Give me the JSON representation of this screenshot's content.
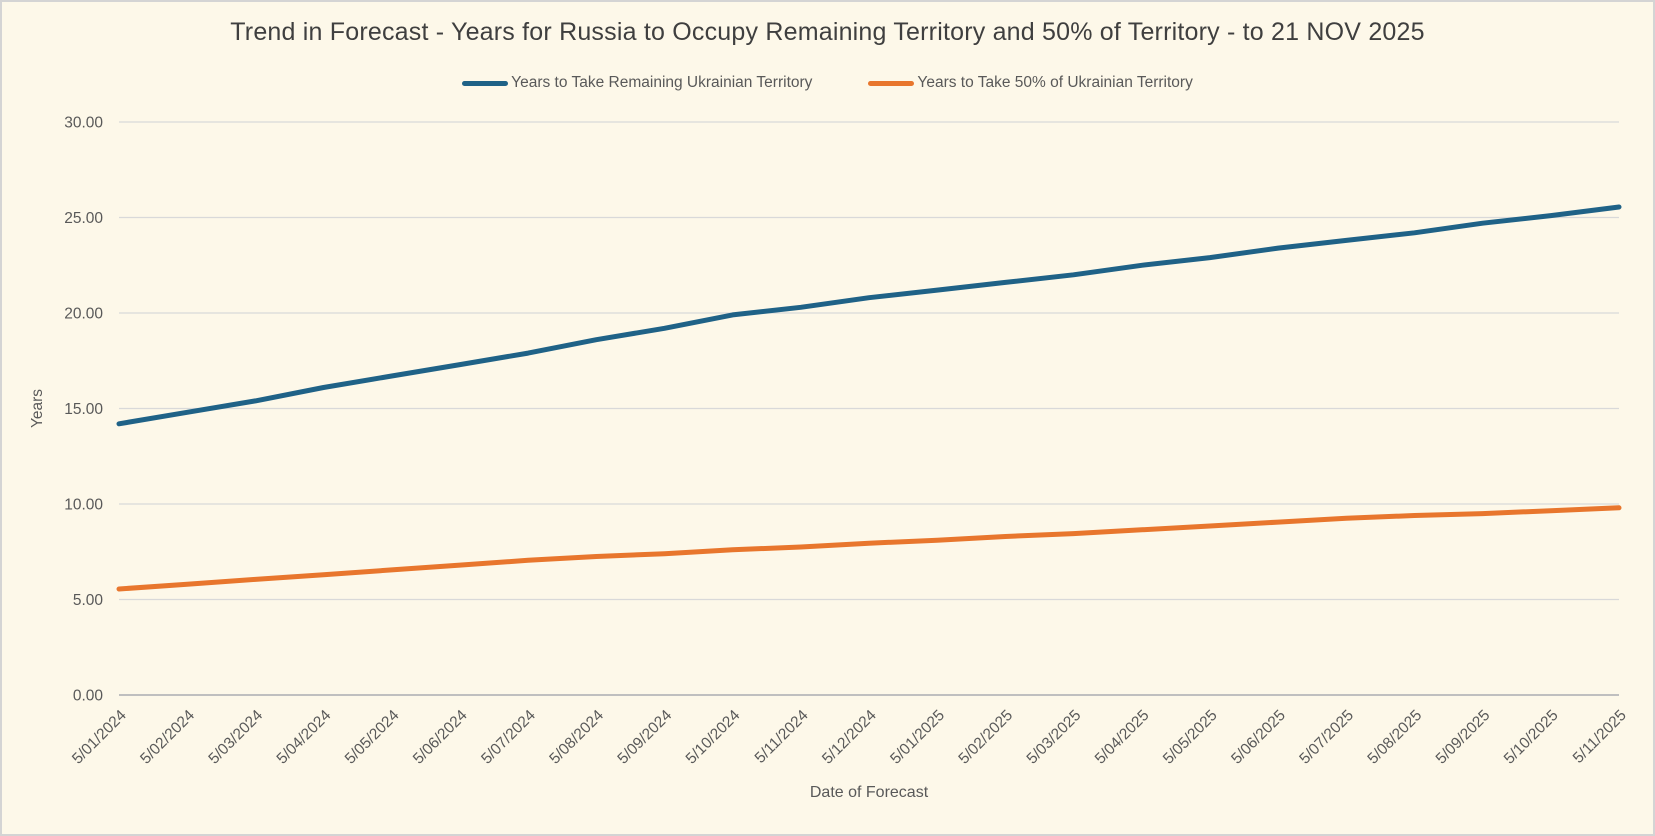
{
  "page": {
    "background": "#FDF8E9",
    "frame_border_color": "#D4D4D4"
  },
  "chart_data": {
    "type": "line",
    "title": "Trend in Forecast - Years for Russia to Occupy Remaining Territory and 50% of Territory - to 21 NOV 2025",
    "xlabel": "Date of Forecast",
    "ylabel": "Years",
    "ylim": [
      0,
      30
    ],
    "y_tick_step": 5,
    "y_tick_labels": [
      "0.00",
      "5.00",
      "10.00",
      "15.00",
      "20.00",
      "25.00",
      "30.00"
    ],
    "grid": true,
    "legend_position": "top-center",
    "title_color": "#3F3F3F",
    "axis_text_color": "#595959",
    "gridline_color": "#D9D9D9",
    "axis_line_color": "#BFBFBF",
    "categories": [
      "5/01/2024",
      "5/02/2024",
      "5/03/2024",
      "5/04/2024",
      "5/05/2024",
      "5/06/2024",
      "5/07/2024",
      "5/08/2024",
      "5/09/2024",
      "5/10/2024",
      "5/11/2024",
      "5/12/2024",
      "5/01/2025",
      "5/02/2025",
      "5/03/2025",
      "5/04/2025",
      "5/05/2025",
      "5/06/2025",
      "5/07/2025",
      "5/08/2025",
      "5/09/2025",
      "5/10/2025",
      "5/11/2025"
    ],
    "series": [
      {
        "name": "Years to Take Remaining Ukrainian Territory",
        "color": "#1F6287",
        "values": [
          14.2,
          14.8,
          15.4,
          16.1,
          16.7,
          17.3,
          17.9,
          18.6,
          19.2,
          19.9,
          20.3,
          20.8,
          21.2,
          21.6,
          22.0,
          22.5,
          22.9,
          23.4,
          23.8,
          24.2,
          24.7,
          25.1,
          25.55
        ]
      },
      {
        "name": "Years to Take  50% of Ukrainian Territory",
        "color": "#E8762D",
        "values": [
          5.55,
          5.8,
          6.05,
          6.3,
          6.55,
          6.8,
          7.05,
          7.25,
          7.4,
          7.6,
          7.75,
          7.95,
          8.1,
          8.3,
          8.45,
          8.65,
          8.85,
          9.05,
          9.25,
          9.4,
          9.5,
          9.65,
          9.8
        ]
      }
    ]
  }
}
